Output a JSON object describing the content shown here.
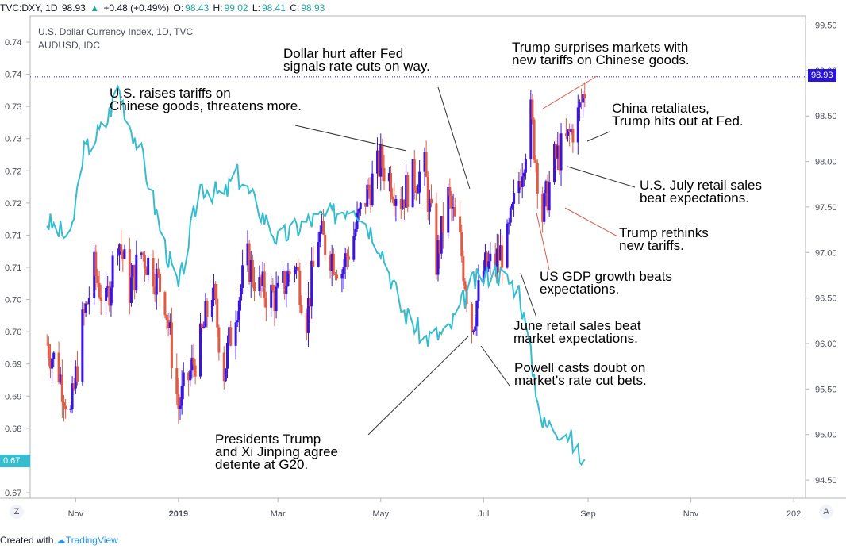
{
  "header": {
    "symbol": "TVC:DXY, 1D",
    "last": "98.93",
    "change_arrow": "▲",
    "change": "+0.48 (+0.49%)",
    "o_label": "O:",
    "o_val": "98.43",
    "h_label": "H:",
    "h_val": "99.02",
    "l_label": "L:",
    "l_val": "98.41",
    "c_label": "C:",
    "c_val": "98.93"
  },
  "legend": {
    "line1": "U.S. Dollar Currency Index, 1D, TVC",
    "line2": "AUDUSD, IDC"
  },
  "footer": {
    "created_with": "Created with",
    "brand": "TradingView"
  },
  "buttons": {
    "left_scale": "Z",
    "right_scale": "A"
  },
  "tags": {
    "dxy_price": "98.93",
    "aud_price": "0.67"
  },
  "colors": {
    "up_candle": "#3a14e0",
    "down_candle": "#e05a45",
    "aud_line": "#36bccf",
    "tag_dxy": "#2a15d6",
    "tag_aud": "#36bccf"
  },
  "annotations": [
    {
      "id": "a1",
      "text": "U.S. raises tariffs on\nChinese goods, threatens more."
    },
    {
      "id": "a2",
      "text": "Dollar hurt after Fed\nsignals rate cuts on way."
    },
    {
      "id": "a3",
      "text": "Trump surprises markets with\nnew tariffs on Chinese goods."
    },
    {
      "id": "a4",
      "text": "China retaliates,\nTrump hits out at Fed."
    },
    {
      "id": "a5",
      "text": "U.S. July retail sales\nbeat expectations."
    },
    {
      "id": "a6",
      "text": "Trump rethinks\nnew tariffs."
    },
    {
      "id": "a7",
      "text": "US GDP growth beats\nexpectations."
    },
    {
      "id": "a8",
      "text": "June retail sales beat\nmarket expectations."
    },
    {
      "id": "a9",
      "text": "Powell casts doubt on\nmarket's rate cut bets."
    },
    {
      "id": "a10",
      "text": "Presidents Trump\nand Xi Jinping agree\ndetente at G20."
    }
  ],
  "chart_data": {
    "type": "line",
    "x_ticks": [
      "Nov",
      "2019",
      "Mar",
      "May",
      "Jul",
      "Sep",
      "Nov",
      "202"
    ],
    "right_axis": {
      "label_ticks": [
        "99.50",
        "99.00",
        "98.50",
        "98.00",
        "97.50",
        "97.00",
        "96.50",
        "96.00",
        "95.50",
        "95.00",
        "94.50"
      ],
      "range": [
        94.3,
        99.6
      ]
    },
    "left_axis": {
      "label_ticks": [
        "0.74",
        "0.74",
        "0.73",
        "0.73",
        "0.72",
        "0.72",
        "0.71",
        "0.71",
        "0.70",
        "0.70",
        "0.69",
        "0.69",
        "0.68",
        "0.68",
        "0.67"
      ]
    },
    "series": [
      {
        "name": "U.S. Dollar Currency Index",
        "kind": "candles",
        "points": [
          [
            "2018-10-15",
            96.0
          ],
          [
            "2018-10-22",
            95.7
          ],
          [
            "2018-10-29",
            95.2
          ],
          [
            "2018-11-05",
            96.2
          ],
          [
            "2018-11-12",
            96.8
          ],
          [
            "2018-11-19",
            96.4
          ],
          [
            "2018-11-26",
            97.2
          ],
          [
            "2018-12-03",
            96.6
          ],
          [
            "2018-12-10",
            97.0
          ],
          [
            "2018-12-17",
            96.8
          ],
          [
            "2018-12-24",
            96.5
          ],
          [
            "2019-01-01",
            95.3
          ],
          [
            "2019-01-14",
            96.0
          ],
          [
            "2019-01-21",
            96.6
          ],
          [
            "2019-01-28",
            95.7
          ],
          [
            "2019-02-04",
            96.4
          ],
          [
            "2019-02-11",
            96.9
          ],
          [
            "2019-02-18",
            96.6
          ],
          [
            "2019-03-01",
            96.5
          ],
          [
            "2019-03-11",
            96.9
          ],
          [
            "2019-03-18",
            96.3
          ],
          [
            "2019-03-25",
            97.2
          ],
          [
            "2019-04-08",
            96.8
          ],
          [
            "2019-04-15",
            97.2
          ],
          [
            "2019-04-22",
            97.6
          ],
          [
            "2019-05-01",
            98.0
          ],
          [
            "2019-05-13",
            97.6
          ],
          [
            "2019-05-20",
            97.8
          ],
          [
            "2019-05-27",
            97.9
          ],
          [
            "2019-06-03",
            96.9
          ],
          [
            "2019-06-10",
            97.6
          ],
          [
            "2019-06-17",
            97.1
          ],
          [
            "2019-06-24",
            96.2
          ],
          [
            "2019-07-01",
            96.8
          ],
          [
            "2019-07-08",
            96.9
          ],
          [
            "2019-07-15",
            97.1
          ],
          [
            "2019-07-22",
            97.8
          ],
          [
            "2019-07-29",
            98.5
          ],
          [
            "2019-08-05",
            97.4
          ],
          [
            "2019-08-12",
            98.0
          ],
          [
            "2019-08-19",
            98.2
          ],
          [
            "2019-08-26",
            98.5
          ],
          [
            "2019-09-01",
            98.93
          ]
        ]
      },
      {
        "name": "AUDUSD",
        "kind": "line",
        "points": [
          [
            "2018-10-15",
            0.711
          ],
          [
            "2018-10-29",
            0.708
          ],
          [
            "2018-11-05",
            0.722
          ],
          [
            "2018-11-19",
            0.727
          ],
          [
            "2018-11-26",
            0.733
          ],
          [
            "2018-12-03",
            0.727
          ],
          [
            "2018-12-10",
            0.722
          ],
          [
            "2018-12-24",
            0.707
          ],
          [
            "2019-01-01",
            0.7
          ],
          [
            "2019-01-14",
            0.717
          ],
          [
            "2019-01-28",
            0.715
          ],
          [
            "2019-02-04",
            0.719
          ],
          [
            "2019-02-18",
            0.713
          ],
          [
            "2019-03-01",
            0.708
          ],
          [
            "2019-03-18",
            0.711
          ],
          [
            "2019-04-01",
            0.712
          ],
          [
            "2019-04-15",
            0.714
          ],
          [
            "2019-05-01",
            0.707
          ],
          [
            "2019-05-13",
            0.697
          ],
          [
            "2019-05-27",
            0.692
          ],
          [
            "2019-06-10",
            0.693
          ],
          [
            "2019-06-24",
            0.701
          ],
          [
            "2019-07-08",
            0.703
          ],
          [
            "2019-07-22",
            0.7
          ],
          [
            "2019-08-05",
            0.678
          ],
          [
            "2019-08-19",
            0.677
          ],
          [
            "2019-09-01",
            0.67
          ]
        ]
      }
    ]
  }
}
